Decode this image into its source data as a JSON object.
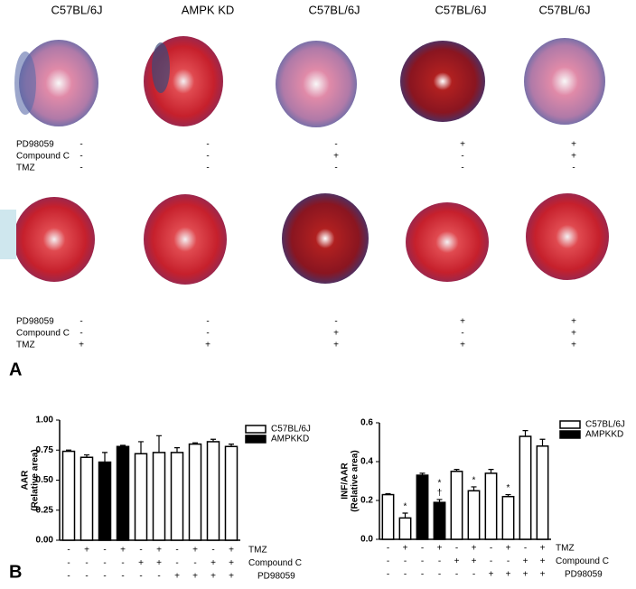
{
  "panel_a": {
    "label": "A",
    "headers": [
      "C57BL/6J",
      "AMPK KD",
      "C57BL/6J",
      "C57BL/6J",
      "C57BL/6J"
    ],
    "row_labels": [
      "PD98059",
      "Compound C",
      "TMZ"
    ],
    "top_conditions": [
      [
        "-",
        "-",
        "-",
        "+",
        "+"
      ],
      [
        "-",
        "-",
        "+",
        "-",
        "+"
      ],
      [
        "-",
        "-",
        "-",
        "-",
        "-"
      ]
    ],
    "bottom_conditions": [
      [
        "-",
        "-",
        "-",
        "+",
        "+"
      ],
      [
        "-",
        "-",
        "+",
        "-",
        "+"
      ],
      [
        "+",
        "+",
        "+",
        "+",
        "+"
      ]
    ]
  },
  "panel_b_label": "B",
  "chart_data": [
    {
      "type": "bar",
      "y_label": "AAR",
      "y_sublabel": "(Relative area)",
      "ylim": [
        0,
        1
      ],
      "yticks": [
        {
          "value": 0,
          "label": "0.00"
        },
        {
          "value": 0.25,
          "label": "0.25"
        },
        {
          "value": 0.5,
          "label": "0.50"
        },
        {
          "value": 0.75,
          "label": "0.75"
        },
        {
          "value": 1,
          "label": "1.00"
        }
      ],
      "series": [
        {
          "name": "C57BL/6J",
          "color": "#ffffff",
          "values": [
            0.74,
            0.69,
            null,
            null,
            0.72,
            0.73,
            0.73,
            0.8,
            0.82,
            0.78
          ],
          "errors": [
            0.01,
            0.02,
            null,
            null,
            0.1,
            0.14,
            0.04,
            0.01,
            0.02,
            0.02
          ]
        },
        {
          "name": "AMPKKD",
          "color": "#000000",
          "values": [
            null,
            null,
            0.65,
            0.78,
            null,
            null,
            null,
            null,
            null,
            null
          ],
          "errors": [
            null,
            null,
            0.08,
            0.01,
            null,
            null,
            null,
            null,
            null,
            null
          ]
        }
      ],
      "conditions": [
        {
          "name": "TMZ",
          "values": [
            "-",
            "+",
            "-",
            "+",
            "-",
            "+",
            "-",
            "+",
            "-",
            "+"
          ]
        },
        {
          "name": "Compound C",
          "values": [
            "-",
            "-",
            "-",
            "-",
            "+",
            "+",
            "-",
            "-",
            "+",
            "+"
          ]
        },
        {
          "name": "PD98059",
          "values": [
            "-",
            "-",
            "-",
            "-",
            "-",
            "-",
            "+",
            "+",
            "+",
            "+"
          ]
        }
      ]
    },
    {
      "type": "bar",
      "y_label": "INF/AAR",
      "y_sublabel": "(Relative area)",
      "ylim": [
        0,
        0.6
      ],
      "yticks": [
        {
          "value": 0,
          "label": "0.0"
        },
        0.2,
        0.4,
        0.6
      ],
      "series": [
        {
          "name": "C57BL/6J",
          "color": "#ffffff",
          "values": [
            0.23,
            0.11,
            null,
            null,
            0.35,
            0.25,
            0.34,
            0.22,
            0.53,
            0.48
          ],
          "errors": [
            0.005,
            0.025,
            null,
            null,
            0.01,
            0.02,
            0.02,
            0.01,
            0.03,
            0.035
          ],
          "annotations": [
            null,
            [
              "*"
            ],
            null,
            null,
            null,
            [
              "*"
            ],
            null,
            [
              "*"
            ],
            null,
            null
          ]
        },
        {
          "name": "AMPKKD",
          "color": "#000000",
          "values": [
            null,
            null,
            0.33,
            0.19,
            null,
            null,
            null,
            null,
            null,
            null
          ],
          "errors": [
            null,
            null,
            0.01,
            0.015,
            null,
            null,
            null,
            null,
            null,
            null
          ],
          "annotations": [
            null,
            null,
            null,
            [
              "†",
              "*"
            ],
            null,
            null,
            null,
            null,
            null,
            null
          ]
        }
      ],
      "conditions": [
        {
          "name": "TMZ",
          "values": [
            "-",
            "+",
            "-",
            "+",
            "-",
            "+",
            "-",
            "+",
            "-",
            "+"
          ]
        },
        {
          "name": "Compound C",
          "values": [
            "-",
            "-",
            "-",
            "-",
            "+",
            "+",
            "-",
            "-",
            "+",
            "+"
          ]
        },
        {
          "name": "PD98059",
          "values": [
            "-",
            "-",
            "-",
            "-",
            "-",
            "-",
            "+",
            "+",
            "+",
            "+"
          ]
        }
      ]
    }
  ]
}
